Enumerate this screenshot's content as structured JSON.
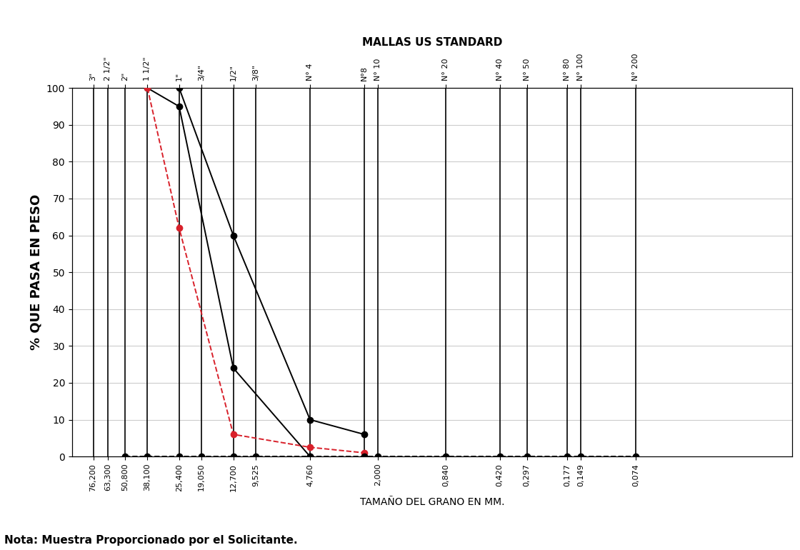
{
  "chart_data": {
    "type": "line",
    "title": "MALLAS US STANDARD",
    "x_label": "TAMAÑO DEL GRANO EN MM.",
    "y_label": "% QUE PASA EN PESO",
    "note": "Nota: Muestra Proporcionado por el Solicitante.",
    "log": "x",
    "grid": true,
    "xlim": [
      100,
      0.01
    ],
    "ylim": [
      0,
      100
    ],
    "yticks": [
      0,
      10,
      20,
      30,
      40,
      50,
      60,
      70,
      80,
      90,
      100
    ],
    "xticks": [
      {
        "value": 76.2,
        "label": "76,200"
      },
      {
        "value": 63.3,
        "label": "63,300"
      },
      {
        "value": 50.8,
        "label": "50,800"
      },
      {
        "value": 38.1,
        "label": "38,100"
      },
      {
        "value": 25.4,
        "label": "25,400"
      },
      {
        "value": 19.05,
        "label": "19,050"
      },
      {
        "value": 12.7,
        "label": "12,700"
      },
      {
        "value": 9.525,
        "label": "9,525"
      },
      {
        "value": 4.76,
        "label": "4,760"
      },
      {
        "value": 2.0,
        "label": "2,000"
      },
      {
        "value": 0.84,
        "label": "0,840"
      },
      {
        "value": 0.42,
        "label": "0,420"
      },
      {
        "value": 0.297,
        "label": "0,297"
      },
      {
        "value": 0.177,
        "label": "0,177"
      },
      {
        "value": 0.149,
        "label": "0,149"
      },
      {
        "value": 0.074,
        "label": "0,074"
      }
    ],
    "x2ticks": [
      {
        "value": 76.2,
        "label": "3\""
      },
      {
        "value": 63.3,
        "label": "2 1/2\""
      },
      {
        "value": 50.8,
        "label": "2\""
      },
      {
        "value": 38.1,
        "label": "1 1/2\""
      },
      {
        "value": 25.4,
        "label": "1\""
      },
      {
        "value": 19.05,
        "label": "3/4\""
      },
      {
        "value": 12.7,
        "label": "1/2\""
      },
      {
        "value": 9.525,
        "label": "3/8\""
      },
      {
        "value": 4.76,
        "label": "N° 4"
      },
      {
        "value": 2.38,
        "label": "N°8"
      },
      {
        "value": 2.0,
        "label": "N° 10"
      },
      {
        "value": 0.84,
        "label": "N° 20"
      },
      {
        "value": 0.42,
        "label": "N° 40"
      },
      {
        "value": 0.297,
        "label": "N° 50"
      },
      {
        "value": 0.177,
        "label": "N° 80"
      },
      {
        "value": 0.149,
        "label": "N° 100"
      },
      {
        "value": 0.074,
        "label": "N° 200"
      }
    ],
    "series": [
      {
        "color": "#000000",
        "marker": "o",
        "line_style": "solid",
        "x": [
          38.1,
          25.4,
          12.7,
          4.76
        ],
        "values": [
          100,
          95,
          24,
          0
        ]
      },
      {
        "color": "#000000",
        "marker": "o",
        "line_style": "solid",
        "x": [
          25.4,
          12.7,
          4.76,
          2.38
        ],
        "values": [
          100,
          60,
          10,
          6
        ]
      },
      {
        "color": "#d8202a",
        "marker": "o",
        "line_style": "dashed",
        "x": [
          38.1,
          25.4,
          12.7,
          4.76,
          2.38
        ],
        "values": [
          100,
          62,
          6,
          2.5,
          1
        ]
      },
      {
        "color": "#000000",
        "marker": "o",
        "line_style": "dashed",
        "x": [
          50.8,
          38.1,
          25.4,
          19.05,
          12.7,
          9.525,
          4.76,
          2.38,
          2.0,
          0.84,
          0.42,
          0.297,
          0.177,
          0.149,
          0.074
        ],
        "values": [
          0,
          0,
          0,
          0,
          0,
          0,
          0,
          0,
          0,
          0,
          0,
          0,
          0,
          0,
          0
        ]
      }
    ]
  }
}
